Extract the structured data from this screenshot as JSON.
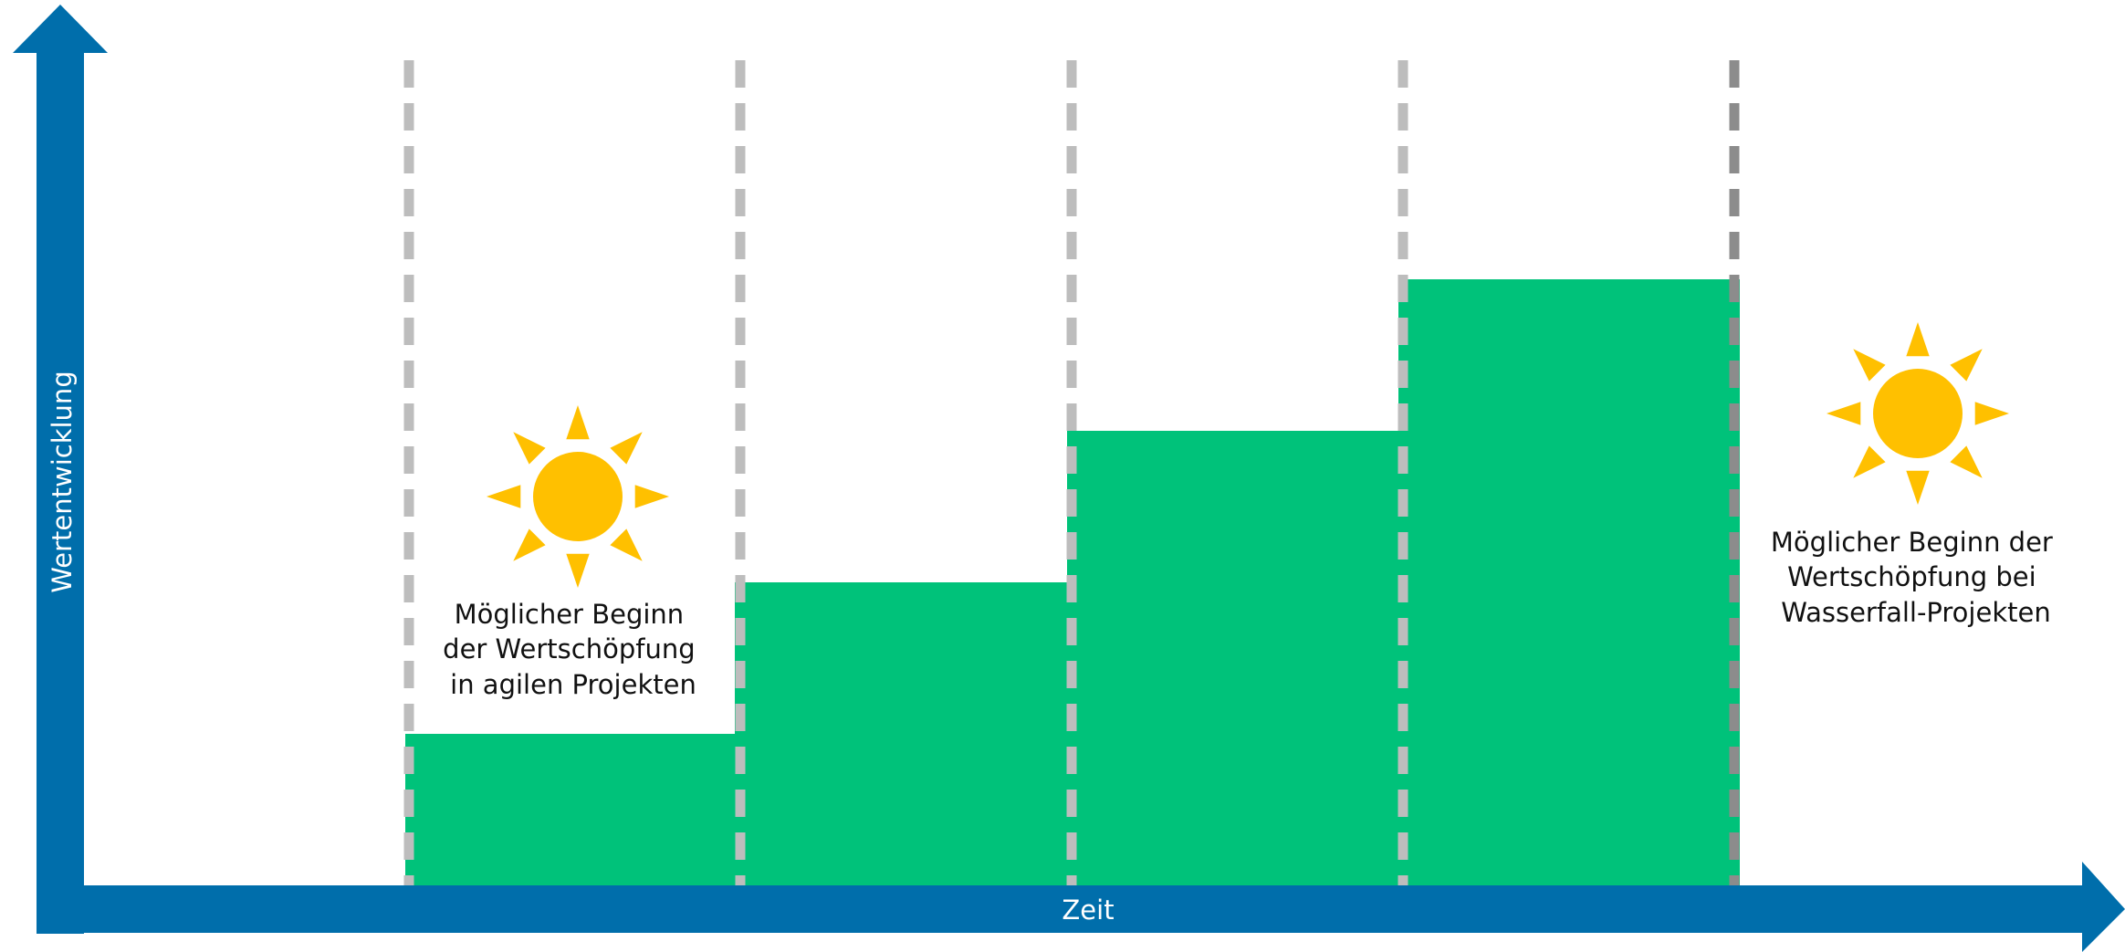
{
  "axes": {
    "y_label": "Wertentwicklung",
    "x_label": "Zeit",
    "color": "#006eab"
  },
  "value_steps": {
    "color": "#00c27a",
    "levels": [
      1,
      2,
      3,
      4
    ]
  },
  "milestones": {
    "count": 5,
    "color": "#bdbdbd",
    "highlight_color": "#8c8c8c",
    "highlight_index": 4
  },
  "callouts": {
    "agile": {
      "icon": "sun-icon",
      "lines": [
        "Möglicher Beginn",
        "der Wertschöpfung",
        "in agilen Projekten"
      ]
    },
    "waterfall": {
      "icon": "sun-icon",
      "lines": [
        "Möglicher Beginn der",
        "Wertschöpfung bei",
        "Wasserfall-Projekten"
      ]
    }
  },
  "sun_color": "#ffc000"
}
